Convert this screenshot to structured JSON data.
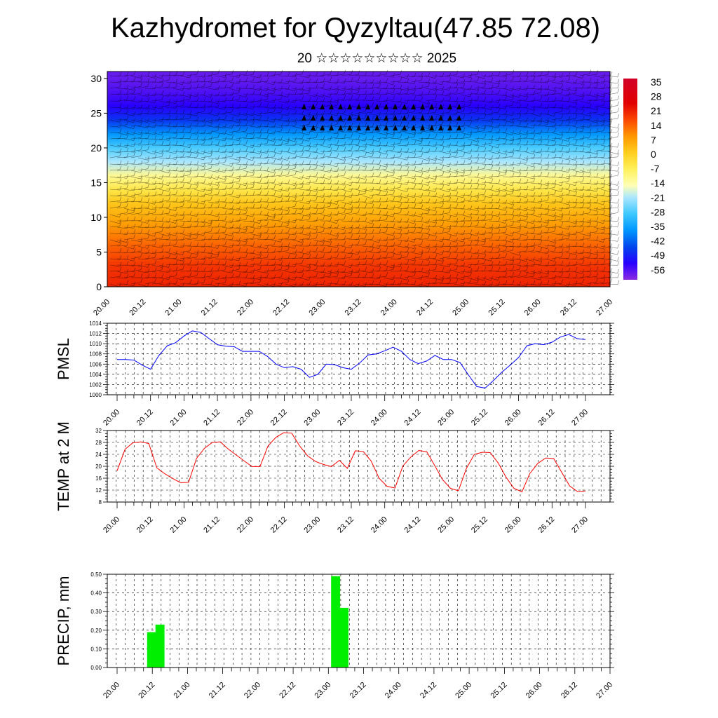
{
  "header": {
    "title": "Kazhydromet for Qyzyltau(47.85 72.08)",
    "subtitle": "20 ☆☆☆☆☆☆☆☆☆ 2025"
  },
  "time_axis_labels": [
    "20.00",
    "20.12",
    "21.00",
    "21.12",
    "22.00",
    "22.12",
    "23.00",
    "23.12",
    "24.00",
    "24.12",
    "25.00",
    "25.12",
    "26.00",
    "26.12",
    "27.00"
  ],
  "chart_data": [
    {
      "type": "heatmap",
      "name": "temperature-wind-cross-section",
      "y_ticks": [
        0,
        5,
        10,
        15,
        20,
        25,
        30
      ],
      "ylim": [
        0,
        31
      ],
      "colorbar_labels": [
        35,
        28,
        21,
        14,
        7,
        0,
        -7,
        -14,
        -21,
        -28,
        -35,
        -42,
        -49,
        -56
      ],
      "colorbar_range": [
        -60,
        38
      ],
      "level_profile_temperature": [
        [
          0,
          22
        ],
        [
          3,
          20
        ],
        [
          6,
          15
        ],
        [
          9,
          9
        ],
        [
          12,
          3
        ],
        [
          14,
          -4
        ],
        [
          16,
          -11
        ],
        [
          18,
          -20
        ],
        [
          20,
          -27
        ],
        [
          22,
          -36
        ],
        [
          24,
          -46
        ],
        [
          26,
          -52
        ],
        [
          28,
          -55
        ],
        [
          30,
          -57
        ]
      ],
      "colors": {
        "windbarb": "#000000"
      }
    },
    {
      "type": "line",
      "name": "pmsl",
      "ylabel": "PMSL",
      "y_ticks": [
        1000,
        1002,
        1004,
        1006,
        1008,
        1010,
        1012,
        1014
      ],
      "ylim": [
        1000,
        1014
      ],
      "series": [
        {
          "color": "#0000ff",
          "values": [
            1006.9,
            1006.9,
            1006.8,
            1005.8,
            1005.0,
            1007.7,
            1009.6,
            1010.2,
            1011.5,
            1012.5,
            1012.2,
            1011.0,
            1009.8,
            1009.5,
            1009.4,
            1008.5,
            1008.5,
            1008.5,
            1007.5,
            1006.0,
            1005.3,
            1005.5,
            1005.0,
            1003.4,
            1004.0,
            1006.0,
            1005.9,
            1005.3,
            1005.0,
            1006.2,
            1007.8,
            1008.0,
            1008.6,
            1009.3,
            1008.5,
            1006.9,
            1006.1,
            1006.6,
            1007.7,
            1006.9,
            1006.9,
            1006.3,
            1003.9,
            1001.6,
            1001.3,
            1002.8,
            1004.4,
            1005.8,
            1007.3,
            1009.6,
            1010.0,
            1009.8,
            1010.3,
            1011.3,
            1011.8,
            1011.0,
            1010.8
          ]
        }
      ]
    },
    {
      "type": "line",
      "name": "temp-2m",
      "ylabel": "TEMP at 2 M",
      "y_ticks": [
        8,
        12,
        16,
        20,
        24,
        28,
        32
      ],
      "ylim": [
        8,
        32
      ],
      "series": [
        {
          "color": "#ff0000",
          "values": [
            18.5,
            25.7,
            27.9,
            28.2,
            27.6,
            19.5,
            17.5,
            15.9,
            14.5,
            14.6,
            22.6,
            26.0,
            28.0,
            28.2,
            25.8,
            23.8,
            21.8,
            19.9,
            19.9,
            26.8,
            29.7,
            31.3,
            31.1,
            26.8,
            23.5,
            21.6,
            20.6,
            19.9,
            22.0,
            19.3,
            25.2,
            25.0,
            21.8,
            16.0,
            13.3,
            12.7,
            20.1,
            23.1,
            25.3,
            24.9,
            20.3,
            15.5,
            12.6,
            11.8,
            19.3,
            24.0,
            24.7,
            24.6,
            21.1,
            16.3,
            12.6,
            11.4,
            17.6,
            21.0,
            22.8,
            22.6,
            18.0,
            13.4,
            11.5,
            11.7
          ]
        }
      ]
    },
    {
      "type": "bar",
      "name": "precip",
      "ylabel": "PRECIP, mm",
      "y_ticks": [
        "0.00",
        "0.10",
        "0.20",
        "0.30",
        "0.40",
        "0.50"
      ],
      "ylim": [
        0,
        0.5
      ],
      "bars": [
        {
          "x_hours": 12,
          "value": 0.19
        },
        {
          "x_hours": 15,
          "value": 0.23
        },
        {
          "x_hours": 78,
          "value": 0.49
        },
        {
          "x_hours": 81,
          "value": 0.32
        }
      ],
      "colors": {
        "bar": "#00ee00"
      }
    }
  ]
}
